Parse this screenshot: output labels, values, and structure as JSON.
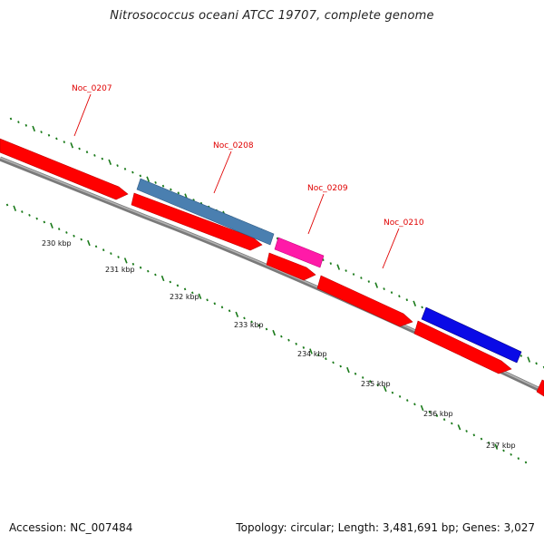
{
  "title": "Nitrosococcus oceani ATCC 19707, complete genome",
  "footer": {
    "accession": "Accession: NC_007484",
    "summary": "Topology: circular; Length: 3,481,691 bp; Genes: 3,027"
  },
  "gene_labels": [
    "Noc_0207",
    "Noc_0208",
    "Noc_0209",
    "Noc_0210"
  ],
  "scale_labels": [
    "230 kbp",
    "231 kbp",
    "232 kbp",
    "233 kbp",
    "234 kbp",
    "235 kbp",
    "236 kbp",
    "237 kbp"
  ],
  "features": [
    {
      "name": "Noc_0207",
      "strand": "forward",
      "color": "#ff0000"
    },
    {
      "name": "Noc_0208",
      "strand": "forward",
      "color": "#ff0000"
    },
    {
      "name": "Noc_0208",
      "strand": "reverse",
      "color": "#4a7fb0"
    },
    {
      "name": "Noc_0209",
      "strand": "forward",
      "color": "#ff0000"
    },
    {
      "name": "Noc_0209",
      "strand": "reverse",
      "color": "#ff1aa8"
    },
    {
      "name": "Noc_0210",
      "strand": "forward",
      "color": "#ff0000"
    },
    {
      "name": "Noc_0210",
      "strand": "forward",
      "color": "#ff0000"
    },
    {
      "name": "",
      "strand": "reverse",
      "color": "#0a0ae6"
    },
    {
      "name": "",
      "strand": "forward",
      "color": "#ff0000"
    }
  ],
  "colors": {
    "backbone": "#808080",
    "tick": "#1a7a1a",
    "label": "#e00000",
    "pointer": "#e00000"
  }
}
